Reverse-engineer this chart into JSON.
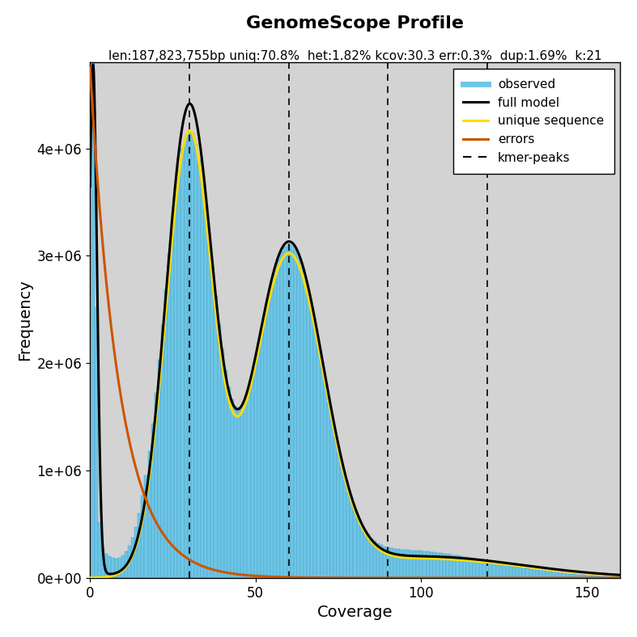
{
  "title": "GenomeScope Profile",
  "subtitle": "len:187,823,755bp uniq:70.8%  het:1.82% kcov:30.3 err:0.3%  dup:1.69%  k:21",
  "xlabel": "Coverage",
  "ylabel": "Frequency",
  "xlim": [
    0,
    160
  ],
  "ylim": [
    0,
    4800000
  ],
  "yticks": [
    0,
    1000000,
    2000000,
    3000000,
    4000000
  ],
  "ytick_labels": [
    "0e+00",
    "1e+06",
    "2e+06",
    "3e+06",
    "4e+06"
  ],
  "xticks": [
    0,
    50,
    100,
    150
  ],
  "background_color": "#d3d3d3",
  "bar_color": "#6ec6e6",
  "bar_edge_color": "#4a9fc0",
  "full_model_color": "#000000",
  "unique_seq_color": "#ffdd00",
  "errors_color": "#cc5500",
  "kmer_peaks": [
    30,
    60,
    90,
    120
  ],
  "het_peak_x": 30,
  "hom_peak_x": 60,
  "title_fontsize": 16,
  "subtitle_fontsize": 11,
  "label_fontsize": 14,
  "tick_fontsize": 12
}
